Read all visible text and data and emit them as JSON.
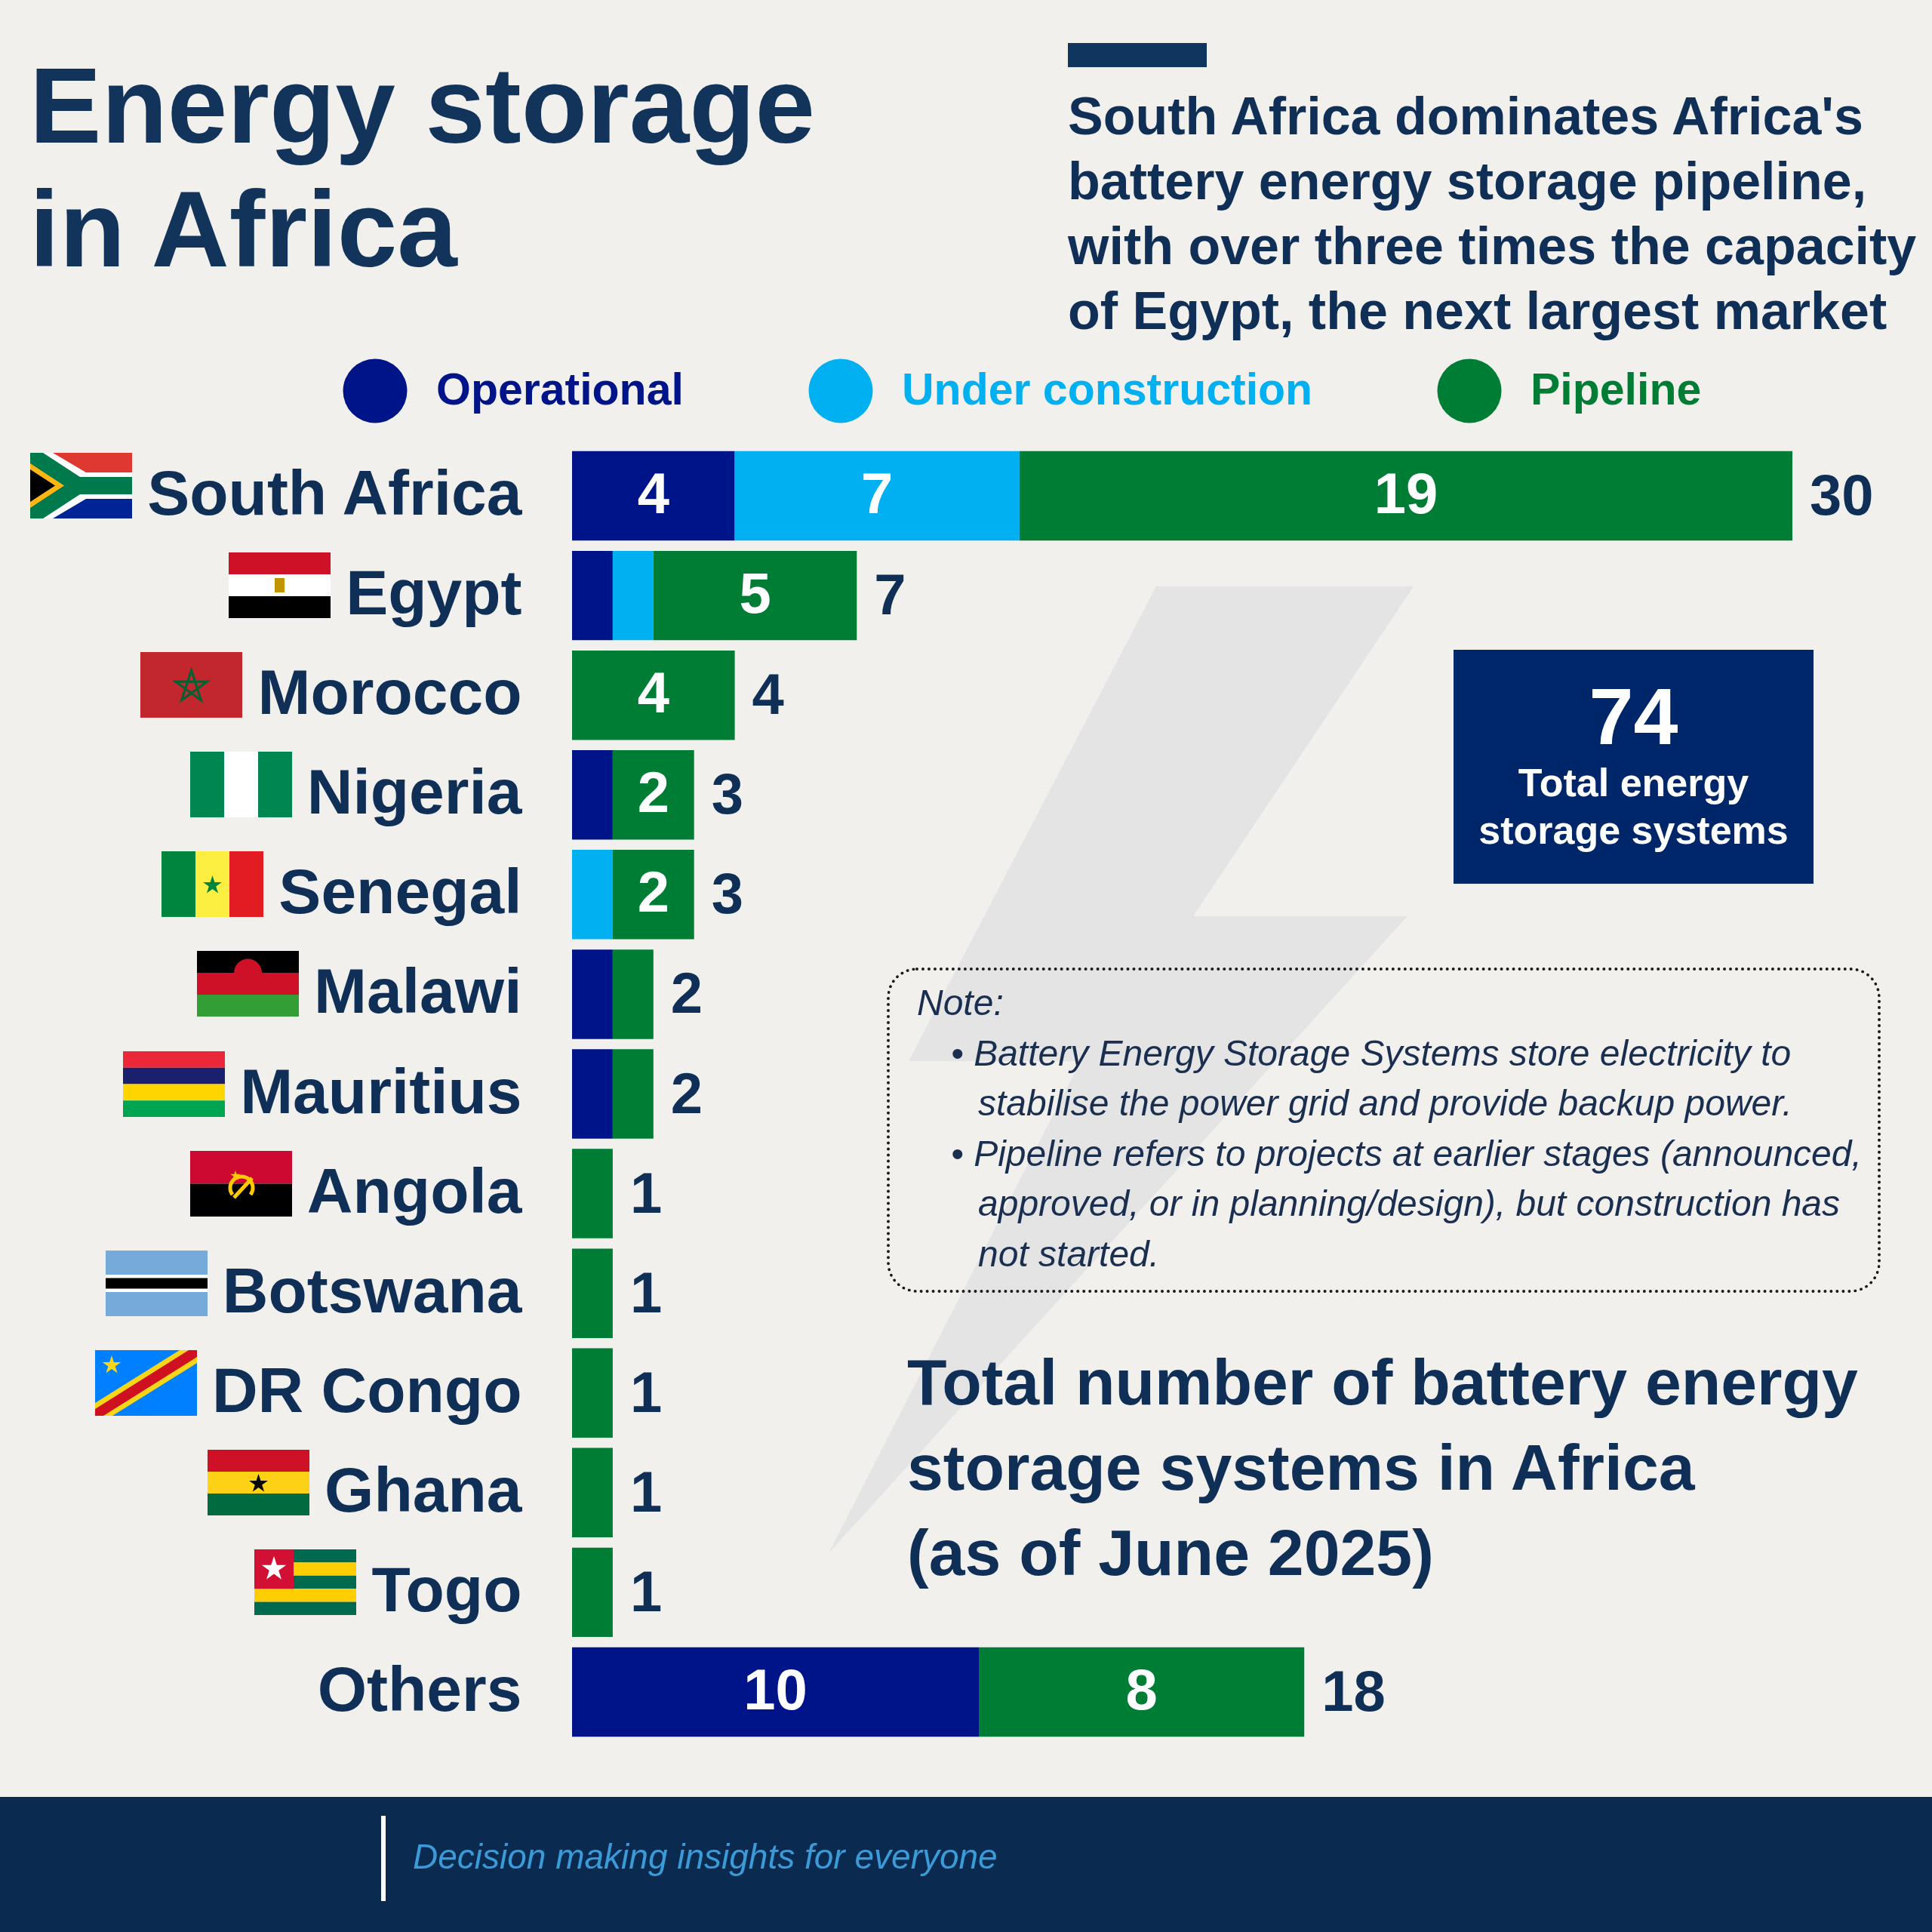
{
  "chart_data": {
    "type": "bar",
    "orientation": "horizontal",
    "stacked": true,
    "title": "Energy storage in Africa",
    "subtitle": "South Africa dominates Africa's battery energy storage pipeline, with over three times the capacity of Egypt, the next largest market",
    "categories": [
      "South Africa",
      "Egypt",
      "Morocco",
      "Nigeria",
      "Senegal",
      "Malawi",
      "Mauritius",
      "Angola",
      "Botswana",
      "DR Congo",
      "Ghana",
      "Togo",
      "Others"
    ],
    "series": [
      {
        "name": "Operational",
        "color": "#001489",
        "values": [
          4,
          1,
          null,
          1,
          null,
          1,
          1,
          null,
          null,
          null,
          null,
          null,
          10
        ],
        "value_labels": [
          "4",
          null,
          null,
          null,
          null,
          null,
          null,
          null,
          null,
          null,
          null,
          null,
          "10"
        ]
      },
      {
        "name": "Under construction",
        "color": "#00b0f0",
        "values": [
          7,
          1,
          null,
          null,
          1,
          null,
          null,
          null,
          null,
          null,
          null,
          null,
          null
        ],
        "value_labels": [
          "7",
          null,
          null,
          null,
          null,
          null,
          null,
          null,
          null,
          null,
          null,
          null,
          null
        ]
      },
      {
        "name": "Pipeline",
        "color": "#007d34",
        "values": [
          19,
          5,
          4,
          2,
          2,
          1,
          1,
          1,
          1,
          1,
          1,
          1,
          8
        ],
        "value_labels": [
          "19",
          "5",
          "4",
          "2",
          "2",
          null,
          null,
          null,
          null,
          null,
          null,
          null,
          "8"
        ]
      }
    ],
    "totals": [
      "30",
      "7",
      "4",
      "3",
      "3",
      "2",
      "2",
      "1",
      "1",
      "1",
      "1",
      "1",
      "18"
    ],
    "legend": "top",
    "annotations": [
      "74",
      "Total energy storage systems",
      "Note:",
      "• Battery Energy Storage Systems store electricity to stabilise the power grid and provide backup power.",
      "• Pipeline refers to projects at earlier stages (announced, approved, or in planning/design), but construction has not started.",
      "Total number of battery energy\nstorage systems in Africa\n(as of June 2025)",
      "Decision making insights for everyone"
    ]
  }
}
